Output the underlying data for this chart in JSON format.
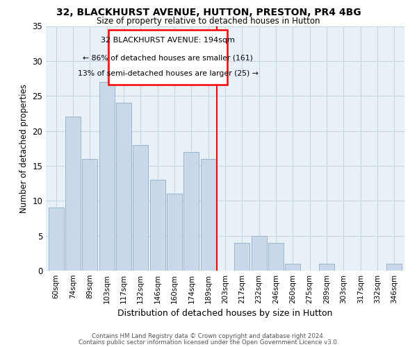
{
  "title": "32, BLACKHURST AVENUE, HUTTON, PRESTON, PR4 4BG",
  "subtitle": "Size of property relative to detached houses in Hutton",
  "xlabel": "Distribution of detached houses by size in Hutton",
  "ylabel": "Number of detached properties",
  "bar_labels": [
    "60sqm",
    "74sqm",
    "89sqm",
    "103sqm",
    "117sqm",
    "132sqm",
    "146sqm",
    "160sqm",
    "174sqm",
    "189sqm",
    "203sqm",
    "217sqm",
    "232sqm",
    "246sqm",
    "260sqm",
    "275sqm",
    "289sqm",
    "303sqm",
    "317sqm",
    "332sqm",
    "346sqm"
  ],
  "bar_values": [
    9,
    22,
    16,
    27,
    24,
    18,
    13,
    11,
    17,
    16,
    0,
    4,
    5,
    4,
    1,
    0,
    1,
    0,
    0,
    0,
    1
  ],
  "bar_color": "#c9d9ea",
  "bar_edge_color": "#9ab4cc",
  "reference_line_x": 9.5,
  "reference_line_label": "32 BLACKHURST AVENUE: 194sqm",
  "annotation_line1": "← 86% of detached houses are smaller (161)",
  "annotation_line2": "13% of semi-detached houses are larger (25) →",
  "ylim": [
    0,
    35
  ],
  "yticks": [
    0,
    5,
    10,
    15,
    20,
    25,
    30,
    35
  ],
  "grid_color": "#c8d4de",
  "plot_bg_color": "#e8f0f8",
  "footer_line1": "Contains HM Land Registry data © Crown copyright and database right 2024.",
  "footer_line2": "Contains public sector information licensed under the Open Government Licence v3.0."
}
